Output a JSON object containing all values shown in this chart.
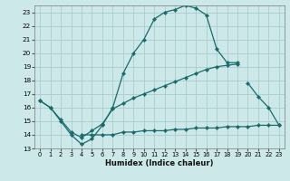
{
  "xlabel": "Humidex (Indice chaleur)",
  "background_color": "#cde8e8",
  "grid_color": "#aacccc",
  "line_color": "#1a6b6b",
  "xlim": [
    -0.5,
    23.5
  ],
  "ylim": [
    13,
    23.5
  ],
  "xticks": [
    0,
    1,
    2,
    3,
    4,
    5,
    6,
    7,
    8,
    9,
    10,
    11,
    12,
    13,
    14,
    15,
    16,
    17,
    18,
    19,
    20,
    21,
    22,
    23
  ],
  "yticks": [
    13,
    14,
    15,
    16,
    17,
    18,
    19,
    20,
    21,
    22,
    23
  ],
  "curve1_x": [
    0,
    1,
    2,
    3,
    4,
    5,
    6,
    7,
    8,
    9,
    10,
    11,
    12,
    13,
    14,
    15,
    16,
    17,
    18,
    19
  ],
  "curve1_y": [
    16.5,
    16.0,
    15.0,
    14.0,
    13.3,
    13.7,
    14.7,
    16.0,
    18.5,
    20.0,
    21.0,
    22.5,
    23.0,
    23.2,
    23.5,
    23.3,
    22.8,
    20.3,
    19.3,
    19.3
  ],
  "curve2_x": [
    0,
    1,
    2,
    3,
    4,
    5,
    6,
    7,
    8,
    9,
    10,
    11,
    12,
    13,
    14,
    15,
    16,
    17,
    18,
    19
  ],
  "curve2_y": [
    16.5,
    16.0,
    15.1,
    14.2,
    13.8,
    14.3,
    14.8,
    15.9,
    16.3,
    16.7,
    17.0,
    17.3,
    17.6,
    17.9,
    18.2,
    18.5,
    18.8,
    19.0,
    19.1,
    19.2
  ],
  "curve3_x": [
    20,
    21,
    22,
    23
  ],
  "curve3_y": [
    17.8,
    16.8,
    16.0,
    14.7
  ],
  "curve4_x": [
    4,
    5,
    6,
    7,
    8,
    9,
    10,
    11,
    12,
    13,
    14,
    15,
    16,
    17,
    18,
    19,
    20,
    21,
    22,
    23
  ],
  "curve4_y": [
    14.0,
    14.0,
    14.0,
    14.0,
    14.2,
    14.2,
    14.3,
    14.3,
    14.3,
    14.4,
    14.4,
    14.5,
    14.5,
    14.5,
    14.6,
    14.6,
    14.6,
    14.7,
    14.7,
    14.7
  ]
}
